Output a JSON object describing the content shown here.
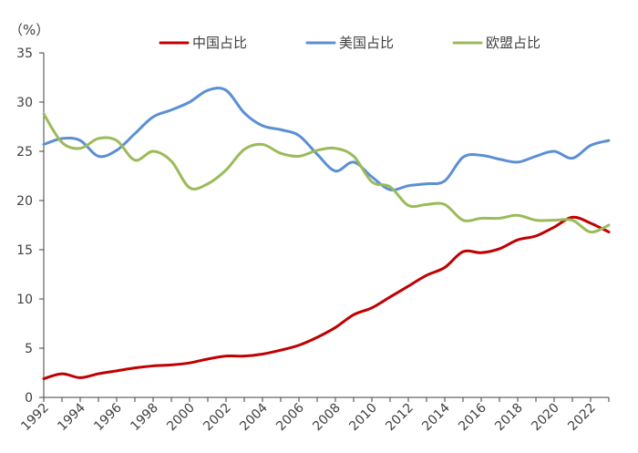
{
  "chart_data": {
    "type": "line",
    "title": "",
    "ylabel": "（%）",
    "xlabel": "",
    "ylim": [
      0,
      35
    ],
    "yticks": [
      0,
      5,
      10,
      15,
      20,
      25,
      30,
      35
    ],
    "xlim": [
      1992,
      2023
    ],
    "xticks": [
      "1992",
      "1994",
      "1996",
      "1998",
      "2000",
      "2002",
      "2004",
      "2006",
      "2008",
      "2010",
      "2012",
      "2014",
      "2016",
      "2018",
      "2020",
      "2022"
    ],
    "grid": false,
    "legend_position": "top",
    "x": [
      1992,
      1993,
      1994,
      1995,
      1996,
      1997,
      1998,
      1999,
      2000,
      2001,
      2002,
      2003,
      2004,
      2005,
      2006,
      2007,
      2008,
      2009,
      2010,
      2011,
      2012,
      2013,
      2014,
      2015,
      2016,
      2017,
      2018,
      2019,
      2020,
      2021,
      2022,
      2023
    ],
    "series": [
      {
        "name": "中国占比",
        "color": "#C00000",
        "values": [
          1.9,
          2.4,
          2.0,
          2.4,
          2.7,
          3.0,
          3.2,
          3.3,
          3.5,
          3.9,
          4.2,
          4.2,
          4.4,
          4.8,
          5.3,
          6.1,
          7.1,
          8.4,
          9.1,
          10.2,
          11.3,
          12.4,
          13.2,
          14.8,
          14.7,
          15.1,
          16.0,
          16.4,
          17.3,
          18.3,
          17.7,
          16.8
        ]
      },
      {
        "name": "美国占比",
        "color": "#5B8FD4",
        "values": [
          25.7,
          26.3,
          26.1,
          24.5,
          25.1,
          26.8,
          28.5,
          29.2,
          30.0,
          31.2,
          31.2,
          28.9,
          27.6,
          27.2,
          26.6,
          24.7,
          23.0,
          23.9,
          22.4,
          21.1,
          21.5,
          21.7,
          22.0,
          24.4,
          24.6,
          24.2,
          23.9,
          24.5,
          25.0,
          24.3,
          25.6,
          26.1
        ]
      },
      {
        "name": "欧盟占比",
        "color": "#9BBB59",
        "values": [
          28.8,
          25.9,
          25.3,
          26.3,
          26.1,
          24.1,
          25.0,
          24.0,
          21.3,
          21.7,
          23.1,
          25.2,
          25.7,
          24.8,
          24.5,
          25.1,
          25.3,
          24.5,
          21.9,
          21.4,
          19.5,
          19.6,
          19.6,
          18.0,
          18.2,
          18.2,
          18.5,
          18.0,
          18.0,
          18.0,
          16.8,
          17.5
        ]
      }
    ]
  }
}
